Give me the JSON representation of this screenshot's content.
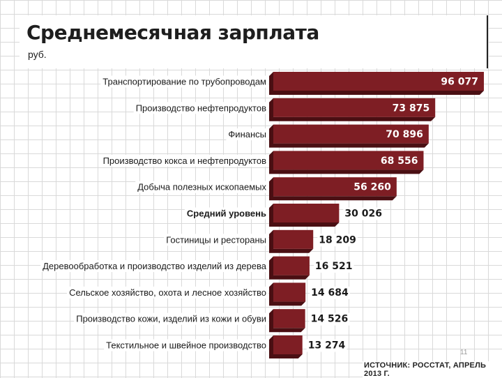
{
  "title": "Среднемесячная зарплата",
  "unit": "руб.",
  "source": "ИСТОЧНИК: РОССТАТ, АПРЕЛЬ 2013 Г.",
  "page_number": "11",
  "colors": {
    "bar": "#7e1e24",
    "bar_dark": "#4a0f13",
    "bar_shadow": "#5a1418"
  },
  "chart_data": {
    "type": "bar",
    "orientation": "horizontal",
    "highlight_category": "Средний уровень",
    "categories": [
      "Транспортирование по трубопроводам",
      "Производство нефтепродуктов",
      "Финансы",
      "Производство кокса и нефтепродуктов",
      "Добыча полезных ископаемых",
      "Средний уровень",
      "Гостиницы и рестораны",
      "Деревообработка и производство изделий из дерева",
      "Сельское хозяйство, охота и лесное хозяйство",
      "Производство кожи, изделий из кожи и обуви",
      "Текстильное и швейное производство"
    ],
    "values": [
      96077,
      73875,
      70896,
      68556,
      56260,
      30026,
      18209,
      16521,
      14684,
      14526,
      13274
    ],
    "value_labels": [
      "96 077",
      "73 875",
      "70 896",
      "68 556",
      "56 260",
      "30 026",
      "18 209",
      "16 521",
      "14 684",
      "14 526",
      "13 274"
    ]
  }
}
